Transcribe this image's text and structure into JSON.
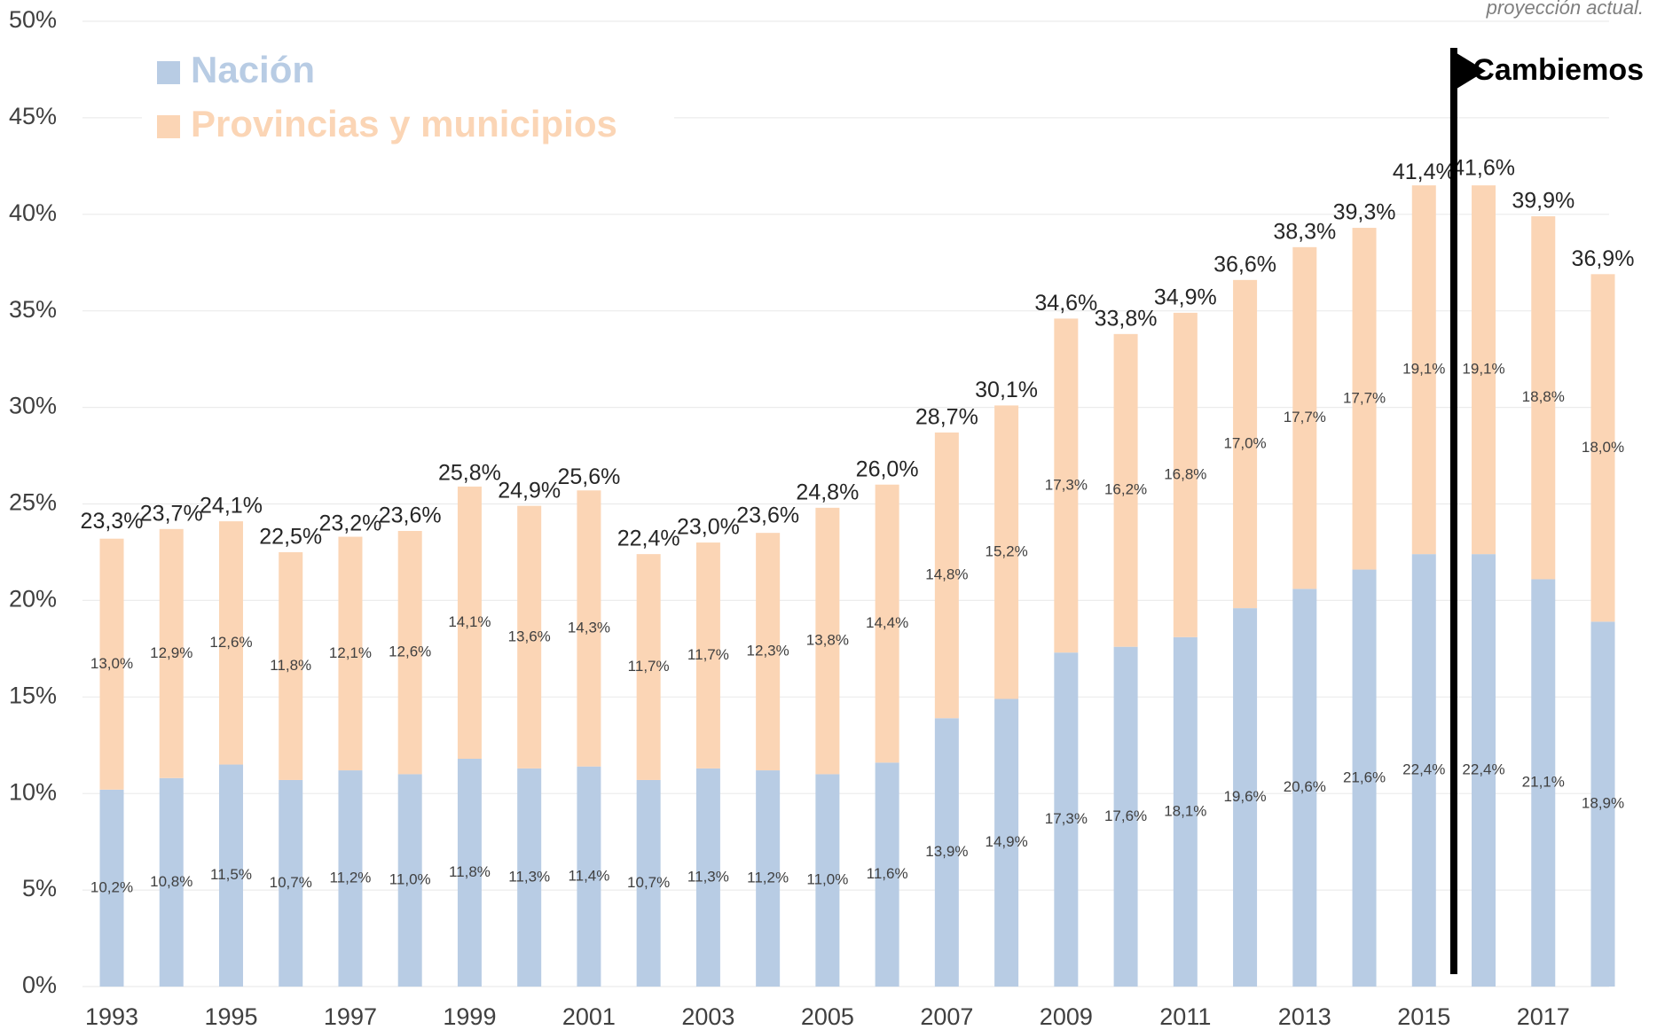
{
  "chart_data": {
    "type": "stacked-bar",
    "note": "proyección actual.",
    "annotation": "Cambiemos",
    "categories": [
      "1993",
      null,
      "1995",
      null,
      "1997",
      null,
      "1999",
      null,
      "2001",
      null,
      "2003",
      null,
      "2005",
      null,
      "2007",
      null,
      "2009",
      null,
      "2011",
      null,
      "2013",
      null,
      "2015",
      null,
      "2017",
      null
    ],
    "series": [
      {
        "name": "Nación",
        "color": "#b8cce4",
        "values": [
          10.2,
          10.8,
          11.5,
          10.7,
          11.2,
          11.0,
          11.8,
          11.3,
          11.4,
          10.7,
          11.3,
          11.2,
          11.0,
          11.6,
          13.9,
          14.9,
          17.3,
          17.6,
          18.1,
          19.6,
          20.6,
          21.6,
          22.4,
          22.4,
          21.1,
          18.9
        ],
        "value_labels": [
          "10,2%",
          "10,8%",
          "11,5%",
          "10,7%",
          "11,2%",
          "11,0%",
          "11,8%",
          "11,3%",
          "11,4%",
          "10,7%",
          "11,3%",
          "11,2%",
          "11,0%",
          "11,6%",
          "13,9%",
          "14,9%",
          "17,3%",
          "17,6%",
          "18,1%",
          "19,6%",
          "20,6%",
          "21,6%",
          "22,4%",
          "22,4%",
          "21,1%",
          "18,9%"
        ]
      },
      {
        "name": "Provincias y municipios",
        "color": "#fbd5b5",
        "values": [
          13.0,
          12.9,
          12.6,
          11.8,
          12.1,
          12.6,
          14.1,
          13.6,
          14.3,
          11.7,
          11.7,
          12.3,
          13.8,
          14.4,
          14.8,
          15.2,
          17.3,
          16.2,
          16.8,
          17.0,
          17.7,
          17.7,
          19.1,
          19.1,
          18.8,
          18.0
        ],
        "value_labels": [
          "13,0%",
          "12,9%",
          "12,6%",
          "11,8%",
          "12,1%",
          "12,6%",
          "14,1%",
          "13,6%",
          "14,3%",
          "11,7%",
          "11,7%",
          "12,3%",
          "13,8%",
          "14,4%",
          "14,8%",
          "15,2%",
          "17,3%",
          "16,2%",
          "16,8%",
          "17,0%",
          "17,7%",
          "17,7%",
          "19,1%",
          "19,1%",
          "18,8%",
          "18,0%"
        ]
      }
    ],
    "totals": {
      "values": [
        23.3,
        23.7,
        24.1,
        22.5,
        23.2,
        23.6,
        25.8,
        24.9,
        25.6,
        22.4,
        23.0,
        23.6,
        24.8,
        26.0,
        28.7,
        30.1,
        34.6,
        33.8,
        34.9,
        36.6,
        38.3,
        39.3,
        41.4,
        41.6,
        39.9,
        36.9
      ],
      "value_labels": [
        "23,3%",
        "23,7%",
        "24,1%",
        "22,5%",
        "23,2%",
        "23,6%",
        "25,8%",
        "24,9%",
        "25,6%",
        "22,4%",
        "23,0%",
        "23,6%",
        "24,8%",
        "26,0%",
        "28,7%",
        "30,1%",
        "34,6%",
        "33,8%",
        "34,9%",
        "36,6%",
        "38,3%",
        "39,3%",
        "41,4%",
        "41,6%",
        "39,9%",
        "36,9%"
      ]
    },
    "ylim": [
      0,
      50
    ],
    "yticks": [
      {
        "value": 0,
        "label": "0%"
      },
      {
        "value": 5,
        "label": "5%"
      },
      {
        "value": 10,
        "label": "10%"
      },
      {
        "value": 15,
        "label": "15%"
      },
      {
        "value": 20,
        "label": "20%"
      },
      {
        "value": 25,
        "label": "25%"
      },
      {
        "value": 30,
        "label": "30%"
      },
      {
        "value": 35,
        "label": "35%"
      },
      {
        "value": 40,
        "label": "40%"
      },
      {
        "value": 45,
        "label": "45%"
      },
      {
        "value": 50,
        "label": "50%"
      }
    ],
    "grid": true
  }
}
